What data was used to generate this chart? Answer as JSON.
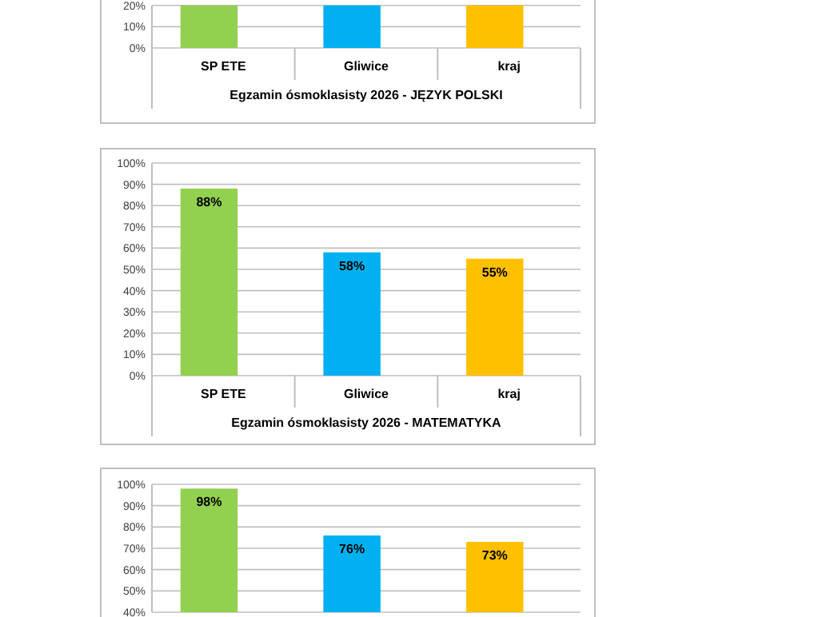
{
  "chart_data": [
    {
      "type": "bar",
      "title": "Egzamin ósmoklasisty 2026 - JĘZYK POLSKI",
      "categories": [
        "SP ETE",
        "Gliwice",
        "kraj"
      ],
      "values": [
        20,
        20,
        20
      ],
      "colors": [
        "#92d050",
        "#00b0f0",
        "#ffc000"
      ],
      "ylim": [
        0,
        20
      ],
      "yticks": [
        {
          "value": 0,
          "label": "0%"
        },
        {
          "value": 10,
          "label": "10%"
        },
        {
          "value": 20,
          "label": "20%"
        }
      ],
      "grid": "y"
    },
    {
      "type": "bar",
      "title": "Egzamin ósmoklasisty 2026 - MATEMATYKA",
      "categories": [
        "SP ETE",
        "Gliwice",
        "kraj"
      ],
      "values": [
        88,
        58,
        55
      ],
      "value_labels": [
        "88%",
        "58%",
        "55%"
      ],
      "colors": [
        "#92d050",
        "#00b0f0",
        "#ffc000"
      ],
      "ylim": [
        0,
        100
      ],
      "yticks": [
        {
          "value": 0,
          "label": "0%"
        },
        {
          "value": 10,
          "label": "10%"
        },
        {
          "value": 20,
          "label": "20%"
        },
        {
          "value": 30,
          "label": "30%"
        },
        {
          "value": 40,
          "label": "40%"
        },
        {
          "value": 50,
          "label": "50%"
        },
        {
          "value": 60,
          "label": "60%"
        },
        {
          "value": 70,
          "label": "70%"
        },
        {
          "value": 80,
          "label": "80%"
        },
        {
          "value": 90,
          "label": "90%"
        },
        {
          "value": 100,
          "label": "100%"
        }
      ],
      "grid": "y"
    },
    {
      "type": "bar",
      "categories": [
        null,
        null,
        null
      ],
      "values": [
        98,
        76,
        73
      ],
      "value_labels": [
        "98%",
        "76%",
        "73%"
      ],
      "colors": [
        "#92d050",
        "#00b0f0",
        "#ffc000"
      ],
      "ylim": [
        40,
        100
      ],
      "yticks": [
        {
          "value": 40,
          "label": "40%"
        },
        {
          "value": 50,
          "label": "50%"
        },
        {
          "value": 60,
          "label": "60%"
        },
        {
          "value": 70,
          "label": "70%"
        },
        {
          "value": 80,
          "label": "80%"
        },
        {
          "value": 90,
          "label": "90%"
        },
        {
          "value": 100,
          "label": "100%"
        }
      ],
      "grid": "y"
    }
  ]
}
